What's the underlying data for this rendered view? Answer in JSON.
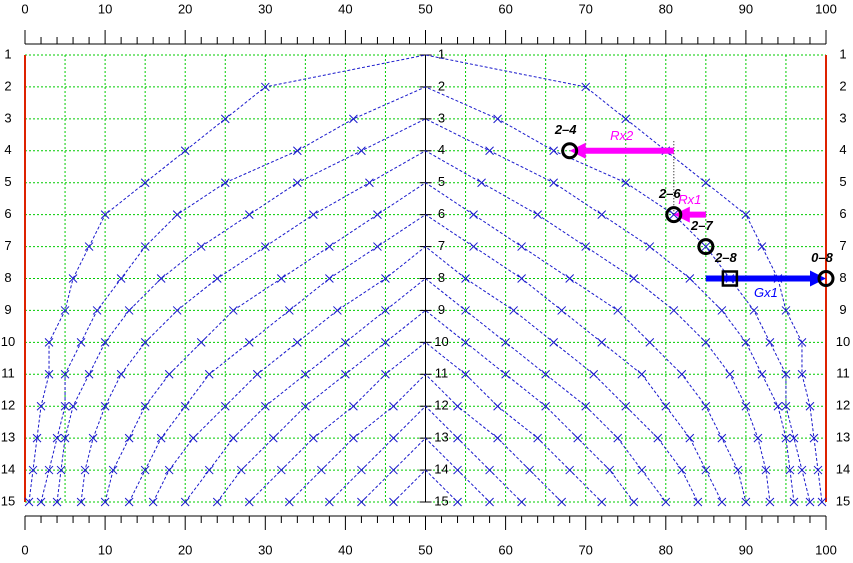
{
  "chart_data": {
    "type": "line",
    "xlim": [
      0,
      100
    ],
    "xticks": [
      0,
      10,
      20,
      30,
      40,
      50,
      60,
      70,
      80,
      90,
      100
    ],
    "xminorticks": [
      2,
      4,
      6,
      8,
      12,
      14,
      16,
      18,
      22,
      24,
      26,
      28,
      32,
      34,
      36,
      38,
      42,
      44,
      46,
      48,
      52,
      54,
      56,
      58,
      62,
      64,
      66,
      68,
      72,
      74,
      76,
      78,
      82,
      84,
      86,
      88,
      92,
      94,
      96,
      98
    ],
    "xgrid": [
      0,
      5,
      10,
      15,
      20,
      25,
      30,
      35,
      40,
      45,
      50,
      55,
      60,
      65,
      70,
      75,
      80,
      85,
      90,
      95,
      100
    ],
    "ylim": [
      1,
      15
    ],
    "yticks": [
      1,
      2,
      3,
      4,
      5,
      6,
      7,
      8,
      9,
      10,
      11,
      12,
      13,
      14,
      15
    ],
    "center_axis": 50,
    "grid_color": "#00cc00",
    "limit_lines": [
      0,
      100
    ],
    "limit_color": "#dd2200",
    "line_color": "#1a1acc",
    "series": [
      {
        "x": [
          0.5,
          1,
          1.5,
          2,
          3,
          3,
          5,
          6,
          8,
          10,
          15,
          20,
          25,
          30,
          50,
          70,
          75,
          80,
          85,
          90,
          92,
          94,
          95,
          97,
          97,
          98,
          98.5,
          99,
          99.5
        ],
        "y": [
          15,
          14,
          13,
          12,
          11,
          10,
          9,
          8,
          7,
          6,
          5,
          4,
          3,
          2,
          1,
          2,
          3,
          4,
          5,
          6,
          7,
          8,
          9,
          10,
          11,
          12,
          13,
          14,
          15
        ]
      },
      {
        "x": [
          2,
          3,
          4,
          5,
          5,
          7,
          9,
          12,
          15,
          19,
          25,
          34,
          41,
          50,
          59,
          66,
          75,
          81,
          85,
          88,
          91,
          93,
          95,
          95,
          96,
          97,
          98
        ],
        "y": [
          15,
          14,
          13,
          12,
          11,
          10,
          9,
          8,
          7,
          6,
          5,
          4,
          3,
          2,
          3,
          4,
          5,
          6,
          7,
          8,
          9,
          10,
          11,
          12,
          13,
          14,
          15
        ]
      },
      {
        "x": [
          4,
          4.5,
          5,
          6,
          8,
          10,
          13,
          17,
          22,
          28,
          34,
          42,
          50,
          58,
          66,
          72,
          78,
          83,
          87,
          90,
          92,
          94,
          95,
          95.5,
          96
        ],
        "y": [
          15,
          14,
          13,
          12,
          11,
          10,
          9,
          8,
          7,
          6,
          5,
          4,
          3,
          4,
          5,
          6,
          7,
          8,
          9,
          10,
          11,
          12,
          13,
          14,
          15
        ]
      },
      {
        "x": [
          7,
          7.5,
          8.5,
          10,
          12,
          15,
          19,
          24,
          30,
          36,
          43,
          50,
          57,
          64,
          70,
          76,
          81,
          85,
          88,
          90,
          91.5,
          92.5,
          93
        ],
        "y": [
          15,
          14,
          13,
          12,
          11,
          10,
          9,
          8,
          7,
          6,
          5,
          4,
          5,
          6,
          7,
          8,
          9,
          10,
          11,
          12,
          13,
          14,
          15
        ]
      },
      {
        "x": [
          10,
          11,
          13,
          15,
          18,
          22,
          26,
          32,
          38,
          44,
          50,
          56,
          62,
          68,
          74,
          78,
          82,
          85,
          87,
          89,
          90
        ],
        "y": [
          15,
          14,
          13,
          12,
          11,
          10,
          9,
          8,
          7,
          6,
          5,
          6,
          7,
          8,
          9,
          10,
          11,
          12,
          13,
          14,
          15
        ]
      },
      {
        "x": [
          13,
          15,
          17,
          20,
          23,
          28,
          33,
          38,
          44,
          50,
          56,
          62,
          67,
          72,
          77,
          80,
          83,
          85,
          87
        ],
        "y": [
          15,
          14,
          13,
          12,
          11,
          10,
          9,
          8,
          7,
          6,
          7,
          8,
          9,
          10,
          11,
          12,
          13,
          14,
          15
        ]
      },
      {
        "x": [
          16,
          18,
          21,
          25,
          29,
          34,
          39,
          45,
          50,
          55,
          61,
          66,
          71,
          75,
          79,
          82,
          84
        ],
        "y": [
          15,
          14,
          13,
          12,
          11,
          10,
          9,
          8,
          7,
          8,
          9,
          10,
          11,
          12,
          13,
          14,
          15
        ]
      },
      {
        "x": [
          20,
          23,
          26,
          30,
          35,
          40,
          45,
          50,
          55,
          60,
          65,
          70,
          74,
          77,
          80
        ],
        "y": [
          15,
          14,
          13,
          12,
          11,
          10,
          9,
          8,
          9,
          10,
          11,
          12,
          13,
          14,
          15
        ]
      },
      {
        "x": [
          24,
          27,
          31,
          35,
          40,
          45,
          50,
          55,
          60,
          65,
          69,
          73,
          76
        ],
        "y": [
          15,
          14,
          13,
          12,
          11,
          10,
          9,
          10,
          11,
          12,
          13,
          14,
          15
        ]
      },
      {
        "x": [
          28,
          32,
          36,
          41,
          45,
          50,
          55,
          59,
          64,
          68,
          72
        ],
        "y": [
          15,
          14,
          13,
          12,
          11,
          10,
          11,
          12,
          13,
          14,
          15
        ]
      },
      {
        "x": [
          33,
          37,
          41,
          46,
          50,
          54,
          59,
          63,
          67
        ],
        "y": [
          15,
          14,
          13,
          12,
          11,
          12,
          13,
          14,
          15
        ]
      },
      {
        "x": [
          38,
          42,
          46,
          50,
          54,
          58,
          62
        ],
        "y": [
          15,
          14,
          13,
          12,
          13,
          14,
          15
        ]
      },
      {
        "x": [
          42,
          46,
          50,
          54,
          58
        ],
        "y": [
          15,
          14,
          13,
          14,
          15
        ]
      },
      {
        "x": [
          46,
          50,
          54
        ],
        "y": [
          15,
          14,
          15
        ]
      }
    ],
    "markers": [
      {
        "label": "2–4",
        "x": 68,
        "y": 4,
        "shape": "circle"
      },
      {
        "label": "2–6",
        "x": 81,
        "y": 6,
        "shape": "circle"
      },
      {
        "label": "2–7",
        "x": 85,
        "y": 7,
        "shape": "circle"
      },
      {
        "label": "2–8",
        "x": 88,
        "y": 8,
        "shape": "square"
      },
      {
        "label": "0–8",
        "x": 100,
        "y": 8,
        "shape": "circle"
      }
    ],
    "arrows": [
      {
        "label": "Rx2",
        "color": "#ff00ff",
        "x_from": 81,
        "x_to": 68,
        "y": 4
      },
      {
        "label": "Rx1",
        "color": "#ff00ff",
        "x_from": 85,
        "x_to": 81,
        "y": 6
      },
      {
        "label": "Gx1",
        "color": "#0000ff",
        "x_from": 85,
        "x_to": 100,
        "y": 8
      }
    ],
    "guide": {
      "x": 81,
      "y_from": 3.7,
      "y_to": 6
    }
  }
}
